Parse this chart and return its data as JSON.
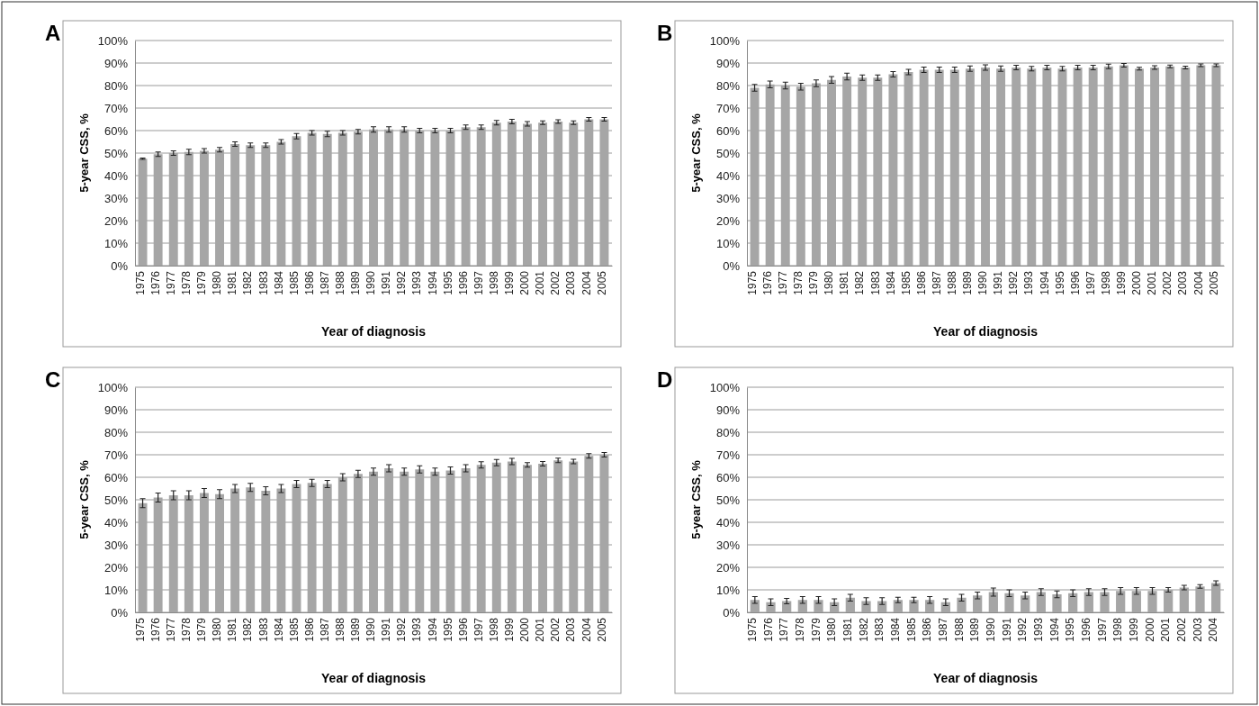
{
  "chart_data": [
    {
      "type": "bar",
      "title": "A",
      "xlabel": "Year of diagnosis",
      "ylabel": "5-year CSS, %",
      "categories": [
        "1975",
        "1976",
        "1977",
        "1978",
        "1979",
        "1980",
        "1981",
        "1982",
        "1983",
        "1984",
        "1985",
        "1986",
        "1987",
        "1988",
        "1989",
        "1990",
        "1991",
        "1992",
        "1993",
        "1994",
        "1995",
        "1996",
        "1997",
        "1998",
        "1999",
        "2000",
        "2001",
        "2002",
        "2003",
        "2004",
        "2005"
      ],
      "series": [
        {
          "color": "#a6a6a6",
          "values": [
            47.5,
            49.5,
            50,
            50.5,
            51,
            51.5,
            54,
            53.5,
            53.5,
            55,
            57.5,
            59,
            58.5,
            59,
            59.5,
            60.5,
            60.5,
            60.5,
            60,
            60,
            60,
            61.5,
            61.5,
            63.5,
            64,
            63,
            63.5,
            64,
            63.5,
            65,
            65
          ],
          "errors": [
            0.3,
            1,
            1,
            1.2,
            1,
            1,
            1,
            1,
            1,
            1,
            1.2,
            1,
            1.2,
            1,
            1,
            1.2,
            1.2,
            1.2,
            1,
            1,
            1,
            1,
            1,
            1,
            1,
            1,
            0.8,
            0.8,
            0.8,
            0.8,
            0.8
          ]
        }
      ],
      "ylim": [
        0,
        100
      ],
      "yticks": [
        {
          "value": 0,
          "label": "0%"
        },
        {
          "value": 10,
          "label": "10%"
        },
        {
          "value": 20,
          "label": "20%"
        },
        {
          "value": 30,
          "label": "30%"
        },
        {
          "value": 40,
          "label": "40%"
        },
        {
          "value": 50,
          "label": "50%"
        },
        {
          "value": 60,
          "label": "60%"
        },
        {
          "value": 70,
          "label": "70%"
        },
        {
          "value": 80,
          "label": "80%"
        },
        {
          "value": 90,
          "label": "90%"
        },
        {
          "value": 100,
          "label": "100%"
        }
      ],
      "grid": "y"
    },
    {
      "type": "bar",
      "title": "B",
      "xlabel": "Year of diagnosis",
      "ylabel": "5-year CSS, %",
      "categories": [
        "1975",
        "1976",
        "1977",
        "1978",
        "1979",
        "1980",
        "1981",
        "1982",
        "1983",
        "1984",
        "1985",
        "1986",
        "1987",
        "1988",
        "1989",
        "1990",
        "1991",
        "1992",
        "1993",
        "1994",
        "1995",
        "1996",
        "1997",
        "1998",
        "1999",
        "2000",
        "2001",
        "2002",
        "2003",
        "2004",
        "2005"
      ],
      "series": [
        {
          "color": "#a6a6a6",
          "values": [
            79,
            80.5,
            80,
            79.5,
            81,
            82.5,
            84,
            83.5,
            83.5,
            85,
            86,
            87,
            87,
            87,
            87.5,
            88,
            87.5,
            88,
            87.5,
            88,
            87.5,
            88,
            88,
            88.5,
            89,
            87.5,
            88,
            88.5,
            88,
            89,
            89
          ],
          "errors": [
            1.5,
            1.5,
            1.5,
            1.5,
            1.5,
            1.5,
            1.5,
            1.2,
            1.2,
            1.2,
            1.2,
            1.2,
            1.2,
            1.2,
            1.2,
            1.2,
            1.2,
            1,
            1,
            1,
            1,
            1,
            1,
            1,
            0.8,
            0.6,
            0.8,
            0.6,
            0.6,
            0.6,
            0.6
          ]
        }
      ],
      "ylim": [
        0,
        100
      ],
      "yticks": [
        {
          "value": 0,
          "label": "0%"
        },
        {
          "value": 10,
          "label": "10%"
        },
        {
          "value": 20,
          "label": "20%"
        },
        {
          "value": 30,
          "label": "30%"
        },
        {
          "value": 40,
          "label": "40%"
        },
        {
          "value": 50,
          "label": "50%"
        },
        {
          "value": 60,
          "label": "60%"
        },
        {
          "value": 70,
          "label": "70%"
        },
        {
          "value": 80,
          "label": "80%"
        },
        {
          "value": 90,
          "label": "90%"
        },
        {
          "value": 100,
          "label": "100%"
        }
      ],
      "grid": "y"
    },
    {
      "type": "bar",
      "title": "C",
      "xlabel": "Year of diagnosis",
      "ylabel": "5-year CSS, %",
      "categories": [
        "1975",
        "1976",
        "1977",
        "1978",
        "1979",
        "1980",
        "1981",
        "1982",
        "1983",
        "1984",
        "1985",
        "1986",
        "1987",
        "1988",
        "1989",
        "1990",
        "1991",
        "1992",
        "1993",
        "1994",
        "1995",
        "1996",
        "1997",
        "1998",
        "1999",
        "2000",
        "2001",
        "2002",
        "2003",
        "2004",
        "2005"
      ],
      "series": [
        {
          "color": "#a6a6a6",
          "values": [
            48.5,
            51,
            52,
            52,
            53,
            52.5,
            55,
            55.5,
            54,
            55,
            57,
            57.5,
            57,
            60,
            61.5,
            62.5,
            64,
            62.5,
            63.5,
            62.5,
            63,
            64,
            65.5,
            66.5,
            67,
            65.5,
            66,
            67.5,
            67,
            69.5,
            70
          ],
          "errors": [
            2,
            2,
            2,
            2,
            2,
            2,
            1.8,
            1.8,
            1.8,
            1.8,
            1.6,
            1.6,
            1.6,
            1.6,
            1.6,
            1.6,
            1.6,
            1.6,
            1.6,
            1.6,
            1.6,
            1.6,
            1.4,
            1.4,
            1.4,
            1,
            1,
            1,
            1,
            1,
            1
          ]
        }
      ],
      "ylim": [
        0,
        100
      ],
      "yticks": [
        {
          "value": 0,
          "label": "0%"
        },
        {
          "value": 10,
          "label": "10%"
        },
        {
          "value": 20,
          "label": "20%"
        },
        {
          "value": 30,
          "label": "30%"
        },
        {
          "value": 40,
          "label": "40%"
        },
        {
          "value": 50,
          "label": "50%"
        },
        {
          "value": 60,
          "label": "60%"
        },
        {
          "value": 70,
          "label": "70%"
        },
        {
          "value": 80,
          "label": "80%"
        },
        {
          "value": 90,
          "label": "90%"
        },
        {
          "value": 100,
          "label": "100%"
        }
      ],
      "grid": "y"
    },
    {
      "type": "bar",
      "title": "D",
      "xlabel": "Year of diagnosis",
      "ylabel": "5-year CSS, %",
      "categories": [
        "1975",
        "1976",
        "1977",
        "1978",
        "1979",
        "1980",
        "1981",
        "1982",
        "1983",
        "1984",
        "1985",
        "1986",
        "1987",
        "1988",
        "1989",
        "1990",
        "1991",
        "1992",
        "1993",
        "1994",
        "1995",
        "1996",
        "1997",
        "1998",
        "1999",
        "2000",
        "2001",
        "2002",
        "2003",
        "2004"
      ],
      "series": [
        {
          "color": "#a6a6a6",
          "values": [
            5.5,
            4.5,
            5,
            5.5,
            5.5,
            4.5,
            6.5,
            5,
            5,
            5.5,
            5.5,
            5.5,
            4.5,
            6.5,
            7.5,
            9,
            8.5,
            7.5,
            9,
            8,
            8.5,
            9,
            9,
            9.5,
            9.5,
            9.5,
            10,
            11,
            11.5,
            13
          ],
          "errors": [
            1.5,
            1.5,
            1.2,
            1.5,
            1.5,
            1.5,
            1.5,
            1.5,
            1.5,
            1.2,
            1.2,
            1.5,
            1.5,
            1.5,
            1.5,
            1.8,
            1.5,
            1.5,
            1.5,
            1.5,
            1.5,
            1.5,
            1.5,
            1.5,
            1.5,
            1.5,
            1,
            1,
            0.8,
            1
          ]
        }
      ],
      "ylim": [
        0,
        100
      ],
      "yticks": [
        {
          "value": 0,
          "label": "0%"
        },
        {
          "value": 10,
          "label": "10%"
        },
        {
          "value": 20,
          "label": "20%"
        },
        {
          "value": 30,
          "label": "30%"
        },
        {
          "value": 40,
          "label": "40%"
        },
        {
          "value": 50,
          "label": "50%"
        },
        {
          "value": 60,
          "label": "60%"
        },
        {
          "value": 70,
          "label": "70%"
        },
        {
          "value": 80,
          "label": "80%"
        },
        {
          "value": 90,
          "label": "90%"
        },
        {
          "value": 100,
          "label": "100%"
        }
      ],
      "grid": "y"
    }
  ]
}
